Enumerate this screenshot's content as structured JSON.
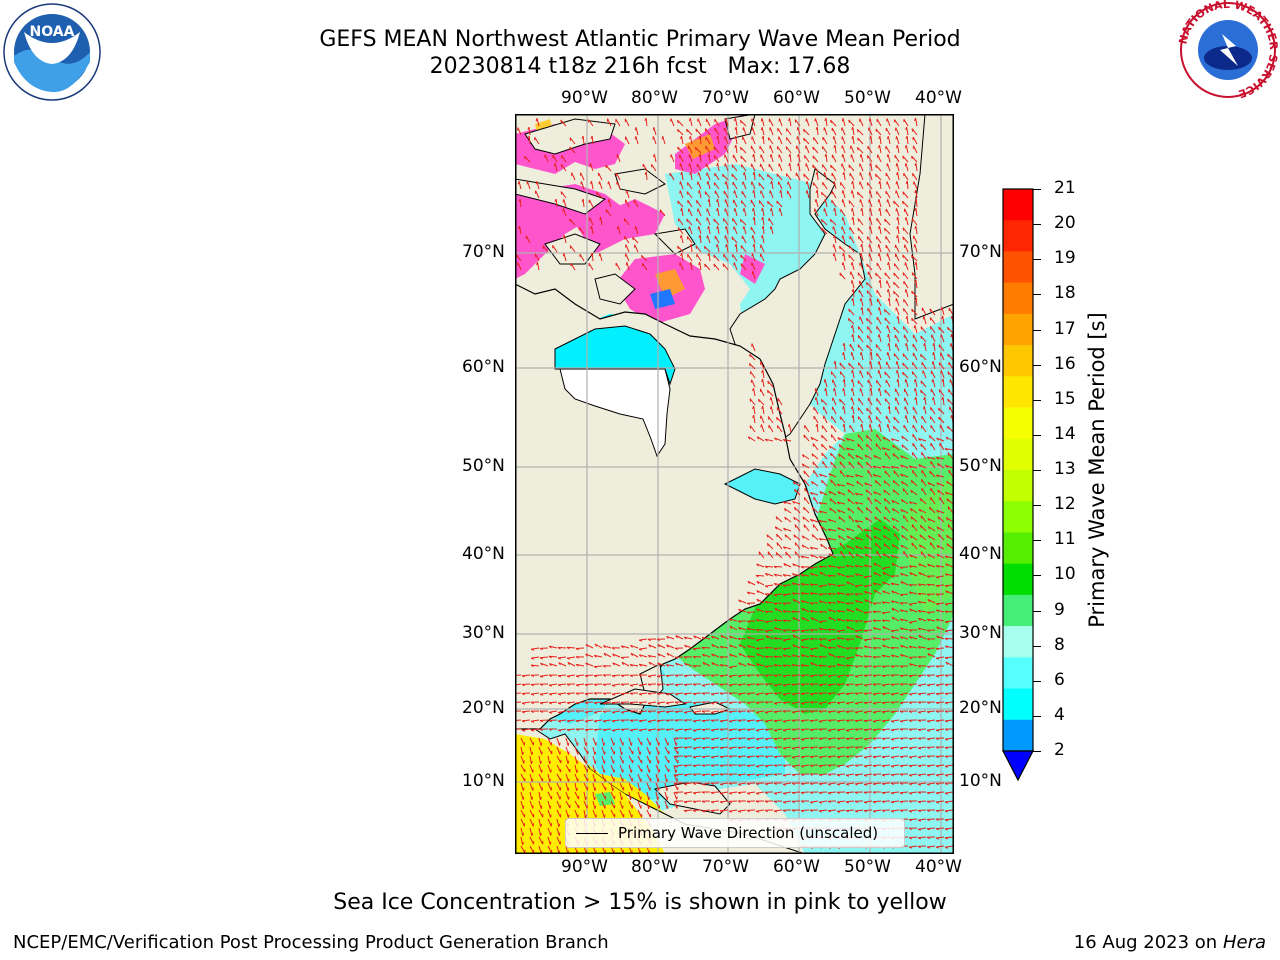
{
  "header": {
    "title_line1": "GEFS MEAN Northwest Atlantic Primary Wave Mean Period",
    "title_line2": "20230814 t18z 216h fcst   Max: 17.68"
  },
  "logos": {
    "left": "NOAA",
    "right_ring_text": "NATIONAL WEATHER SERVICE"
  },
  "map": {
    "lon_labels": [
      "90°W",
      "80°W",
      "70°W",
      "60°W",
      "50°W",
      "40°W"
    ],
    "lat_labels": [
      "70°N",
      "60°N",
      "50°N",
      "40°N",
      "30°N",
      "20°N",
      "10°N"
    ],
    "legend_label": "Primary Wave Direction (unscaled)",
    "colors": {
      "land": "#efeedd",
      "vector": "#e8201a",
      "grid": "#b0b0b0",
      "ice_pink": "#ff55cc"
    }
  },
  "colorbar": {
    "label": "Primary Wave Mean Period [s]",
    "ticks": [
      "21",
      "20",
      "19",
      "18",
      "17",
      "16",
      "15",
      "14",
      "13",
      "12",
      "11",
      "10",
      "9",
      "8",
      "6",
      "4",
      "2"
    ],
    "bands": [
      "#ff0000",
      "#ff2600",
      "#ff5200",
      "#ff7c00",
      "#ffa300",
      "#ffc700",
      "#ffe600",
      "#f6ff00",
      "#e0ff00",
      "#c3ff00",
      "#8cff00",
      "#55ee00",
      "#00dd00",
      "#44ee77",
      "#a8ffee",
      "#55ffff",
      "#00ffff",
      "#0099ff"
    ],
    "extend_color": "#0000ff"
  },
  "footer": {
    "note": "Sea Ice Concentration > 15% is shown in pink to yellow",
    "org": "NCEP/EMC/Verification Post Processing Product Generation Branch",
    "date": "16 Aug 2023 on",
    "host": "Hera"
  }
}
